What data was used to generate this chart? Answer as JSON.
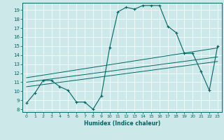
{
  "title": "",
  "xlabel": "Humidex (Indice chaleur)",
  "ylabel": "",
  "xlim": [
    -0.5,
    23.5
  ],
  "ylim": [
    7.7,
    19.8
  ],
  "yticks": [
    8,
    9,
    10,
    11,
    12,
    13,
    14,
    15,
    16,
    17,
    18,
    19
  ],
  "xticks": [
    0,
    1,
    2,
    3,
    4,
    5,
    6,
    7,
    8,
    9,
    10,
    11,
    12,
    13,
    14,
    15,
    16,
    17,
    18,
    19,
    20,
    21,
    22,
    23
  ],
  "bg_color": "#cce8e8",
  "line_color": "#006666",
  "grid_color": "#ffffff",
  "series": [
    [
      0,
      8.7
    ],
    [
      1,
      9.8
    ],
    [
      2,
      11.2
    ],
    [
      3,
      11.2
    ],
    [
      4,
      10.5
    ],
    [
      5,
      10.1
    ],
    [
      6,
      8.8
    ],
    [
      7,
      8.8
    ],
    [
      8,
      8.0
    ],
    [
      9,
      9.5
    ],
    [
      10,
      14.8
    ],
    [
      11,
      18.8
    ],
    [
      12,
      19.3
    ],
    [
      13,
      19.1
    ],
    [
      14,
      19.5
    ],
    [
      15,
      19.5
    ],
    [
      16,
      19.5
    ],
    [
      17,
      17.2
    ],
    [
      18,
      16.5
    ],
    [
      19,
      14.2
    ],
    [
      20,
      14.2
    ],
    [
      21,
      12.2
    ],
    [
      22,
      10.1
    ],
    [
      23,
      15.0
    ]
  ],
  "regression_lines": [
    {
      "x": [
        0,
        23
      ],
      "y": [
        11.5,
        14.8
      ]
    },
    {
      "x": [
        0,
        23
      ],
      "y": [
        11.0,
        13.8
      ]
    },
    {
      "x": [
        0,
        23
      ],
      "y": [
        10.5,
        13.3
      ]
    }
  ]
}
